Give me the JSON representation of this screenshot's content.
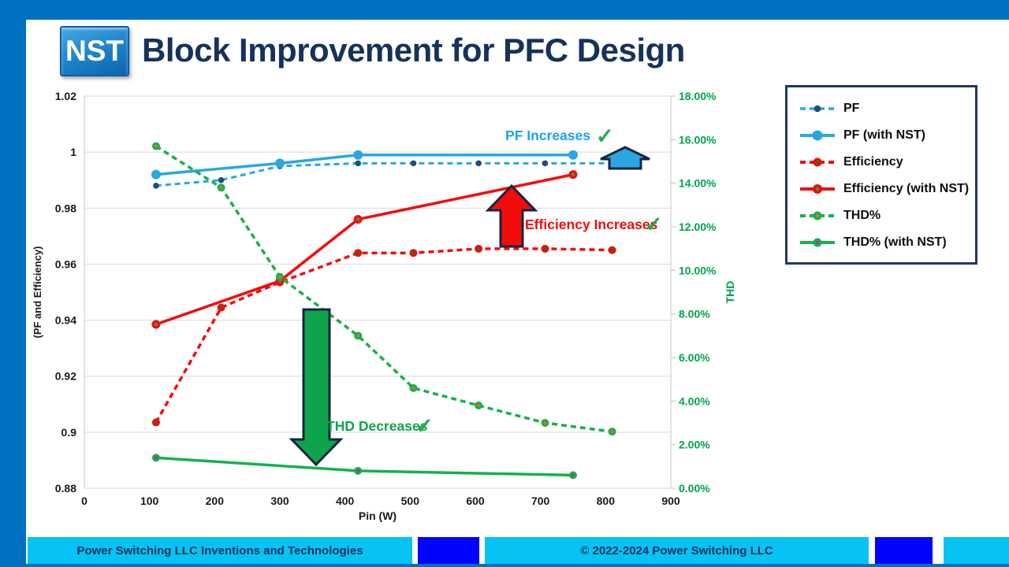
{
  "slide": {
    "logo_text": "NST",
    "title": "Block Improvement for PFC Design"
  },
  "chart_data": {
    "type": "line",
    "title": "",
    "xlabel": "Pin (W)",
    "ylabel_left": "(PF and Efficiency)",
    "ylabel_right": "THD",
    "xlim": [
      0,
      900
    ],
    "x_ticks": [
      "0",
      "100",
      "200",
      "300",
      "400",
      "500",
      "600",
      "700",
      "800",
      "900"
    ],
    "ylim_left": [
      0.88,
      1.02
    ],
    "y_ticks_left": [
      "1.02",
      "1",
      "0.98",
      "0.96",
      "0.94",
      "0.92",
      "0.9",
      "0.88"
    ],
    "ylim_right": [
      0,
      0.18
    ],
    "y_ticks_right": [
      "18.00%",
      "16.00%",
      "14.00%",
      "12.00%",
      "10.00%",
      "8.00%",
      "6.00%",
      "4.00%",
      "2.00%",
      "0.00%"
    ],
    "grid": "horizontal",
    "legend_position": "outside-right",
    "series": [
      {
        "name": "PF",
        "axis": "left",
        "style": "dashed",
        "color": "#2AA7E0",
        "width": 3,
        "marker": {
          "r": 3.8,
          "fill": "#1F4E79"
        },
        "points": [
          [
            110,
            0.988
          ],
          [
            210,
            0.99
          ],
          [
            300,
            0.995
          ],
          [
            420,
            0.996
          ],
          [
            505,
            0.996
          ],
          [
            605,
            0.996
          ],
          [
            707,
            0.996
          ],
          [
            810,
            0.996
          ]
        ]
      },
      {
        "name": "PF (with NST)",
        "axis": "left",
        "style": "solid",
        "color": "#2AA7E0",
        "width": 3.5,
        "marker": {
          "r": 6,
          "fill": "#2AA7E0"
        },
        "points": [
          [
            110,
            0.992
          ],
          [
            300,
            0.996
          ],
          [
            420,
            0.999
          ],
          [
            750,
            0.999
          ]
        ]
      },
      {
        "name": "Efficiency",
        "axis": "left",
        "style": "dashed",
        "color": "#F40B0B",
        "width": 3.5,
        "marker": {
          "r": 5,
          "fill": "#F40B0B",
          "center": "#1a7a1e",
          "center_r": 2
        },
        "points": [
          [
            110,
            0.9035
          ],
          [
            210,
            0.9445
          ],
          [
            300,
            0.9535
          ],
          [
            420,
            0.964
          ],
          [
            505,
            0.964
          ],
          [
            605,
            0.9655
          ],
          [
            707,
            0.9655
          ],
          [
            810,
            0.965
          ]
        ]
      },
      {
        "name": "Efficiency (with NST)",
        "axis": "left",
        "style": "solid",
        "color": "#F40B0B",
        "width": 3.5,
        "marker": {
          "r": 5.5,
          "fill": "#F40B0B",
          "center": "#2f9e44",
          "center_r": 2.2
        },
        "points": [
          [
            110,
            0.9385
          ],
          [
            300,
            0.954
          ],
          [
            420,
            0.976
          ],
          [
            750,
            0.992
          ]
        ]
      },
      {
        "name": "THD%",
        "axis": "right",
        "style": "dashed",
        "color": "#17B04E",
        "width": 3.5,
        "marker": {
          "r": 5,
          "fill": "#17B04E",
          "center": "#E0761F",
          "center_r": 2
        },
        "points": [
          [
            110,
            0.157
          ],
          [
            210,
            0.138
          ],
          [
            300,
            0.097
          ],
          [
            420,
            0.07
          ],
          [
            505,
            0.046
          ],
          [
            605,
            0.038
          ],
          [
            707,
            0.03
          ],
          [
            810,
            0.026
          ]
        ]
      },
      {
        "name": "THD% (with NST)",
        "axis": "right",
        "style": "solid",
        "color": "#17B04E",
        "width": 3.5,
        "marker": {
          "r": 5,
          "fill": "#17B04E",
          "center": "#A23B9B",
          "center_r": 2
        },
        "points": [
          [
            110,
            0.014
          ],
          [
            420,
            0.008
          ],
          [
            750,
            0.006
          ]
        ]
      }
    ],
    "annotations": [
      {
        "text": "PF Increases",
        "color": "#1BA3E8",
        "checkmark": "✓",
        "check_color": "#21AC4C"
      },
      {
        "text": "Efficiency Increases",
        "color": "#F40B0B",
        "checkmark": "✓",
        "check_color": "#21AC4C"
      },
      {
        "text": "THD Decreases",
        "color": "#0FA44A",
        "checkmark": "✓",
        "check_color": "#21AC4C"
      }
    ],
    "arrows": [
      {
        "name": "pf-up-arrow",
        "direction": "up",
        "fill": "#2AA7E0"
      },
      {
        "name": "efficiency-up-arrow",
        "direction": "up",
        "fill": "#F40B0B"
      },
      {
        "name": "thd-down-arrow",
        "direction": "down",
        "fill": "#0EA44B"
      }
    ]
  },
  "legend": {
    "items": [
      "PF",
      "PF (with NST)",
      "Efficiency",
      "Efficiency (with NST)",
      "THD%",
      "THD% (with NST)"
    ]
  },
  "footer": {
    "left_text": "Power Switching LLC Inventions and Technologies",
    "center_text": "© 2022-2024 Power Switching LLC"
  },
  "colors": {
    "frame_blue": "#0070C0",
    "title_navy": "#16325B",
    "footer_cyan": "#06C3F4",
    "footer_blue": "#0004FE",
    "right_axis_green": "#00A44F",
    "gridline": "#D9D9D9"
  }
}
